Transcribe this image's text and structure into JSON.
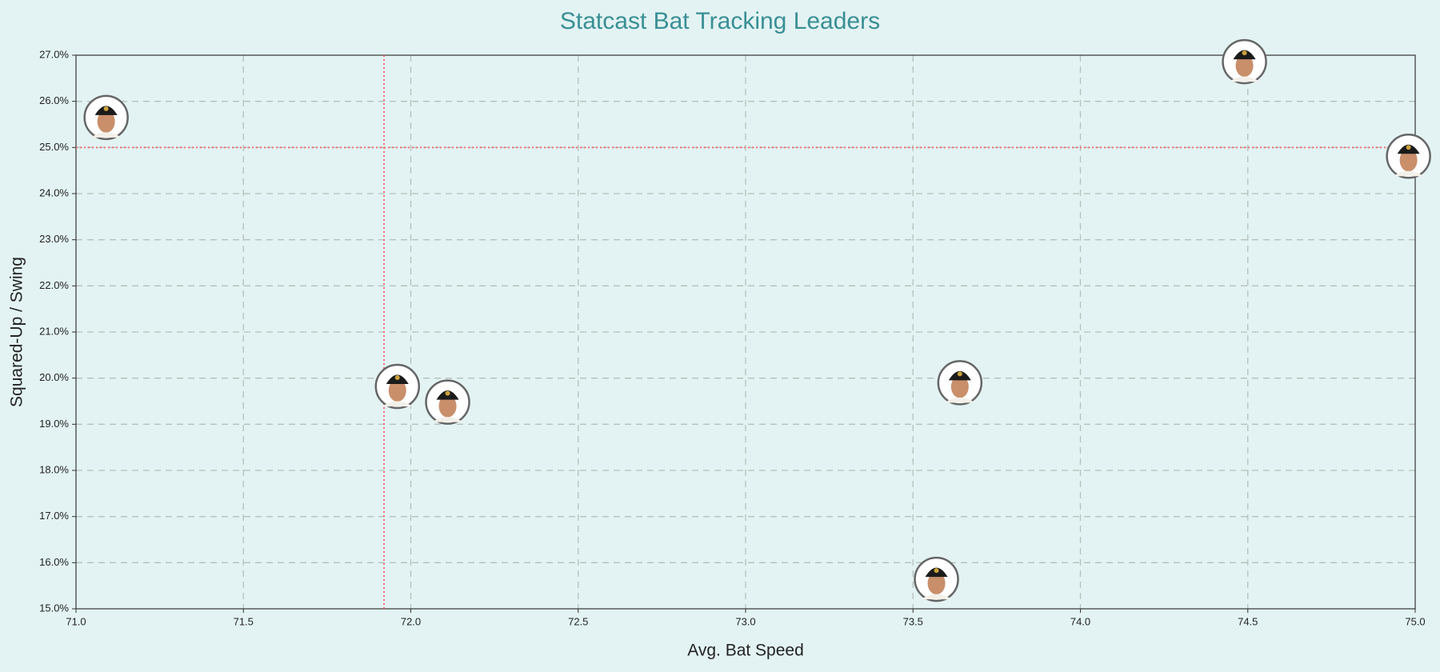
{
  "chart_data": {
    "type": "scatter",
    "title": "Statcast Bat Tracking Leaders",
    "x_label": "Avg. Bat Speed",
    "y_label": "Squared-Up / Swing",
    "x": [
      71.09,
      71.96,
      72.11,
      73.64,
      73.57,
      74.49,
      74.98
    ],
    "values": [
      25.65,
      19.82,
      19.48,
      19.9,
      15.64,
      26.86,
      24.81
    ],
    "xlim": [
      71.0,
      75.0
    ],
    "ylim": [
      15.0,
      27.0
    ],
    "xticks": [
      {
        "value": 71,
        "label": "71.0"
      },
      {
        "value": 71.5,
        "label": "71.5"
      },
      {
        "value": 72,
        "label": "72.0"
      },
      {
        "value": 72.5,
        "label": "72.5"
      },
      {
        "value": 73,
        "label": "73.0"
      },
      {
        "value": 73.5,
        "label": "73.5"
      },
      {
        "value": 74,
        "label": "74.0"
      },
      {
        "value": 74.5,
        "label": "74.5"
      },
      {
        "value": 75,
        "label": "75.0"
      }
    ],
    "yticks": [
      {
        "value": 15,
        "label": "15.0%"
      },
      {
        "value": 16,
        "label": "16.0%"
      },
      {
        "value": 17,
        "label": "17.0%"
      },
      {
        "value": 18,
        "label": "18.0%"
      },
      {
        "value": 19,
        "label": "19.0%"
      },
      {
        "value": 20,
        "label": "20.0%"
      },
      {
        "value": 21,
        "label": "21.0%"
      },
      {
        "value": 22,
        "label": "22.0%"
      },
      {
        "value": 23,
        "label": "23.0%"
      },
      {
        "value": 24,
        "label": "24.0%"
      },
      {
        "value": 25,
        "label": "25.0%"
      },
      {
        "value": 26,
        "label": "26.0%"
      },
      {
        "value": 27,
        "label": "27.0%"
      }
    ],
    "reference_x": 71.92,
    "reference_y": 25.0,
    "reference_color": "#f07070",
    "grid": true
  }
}
